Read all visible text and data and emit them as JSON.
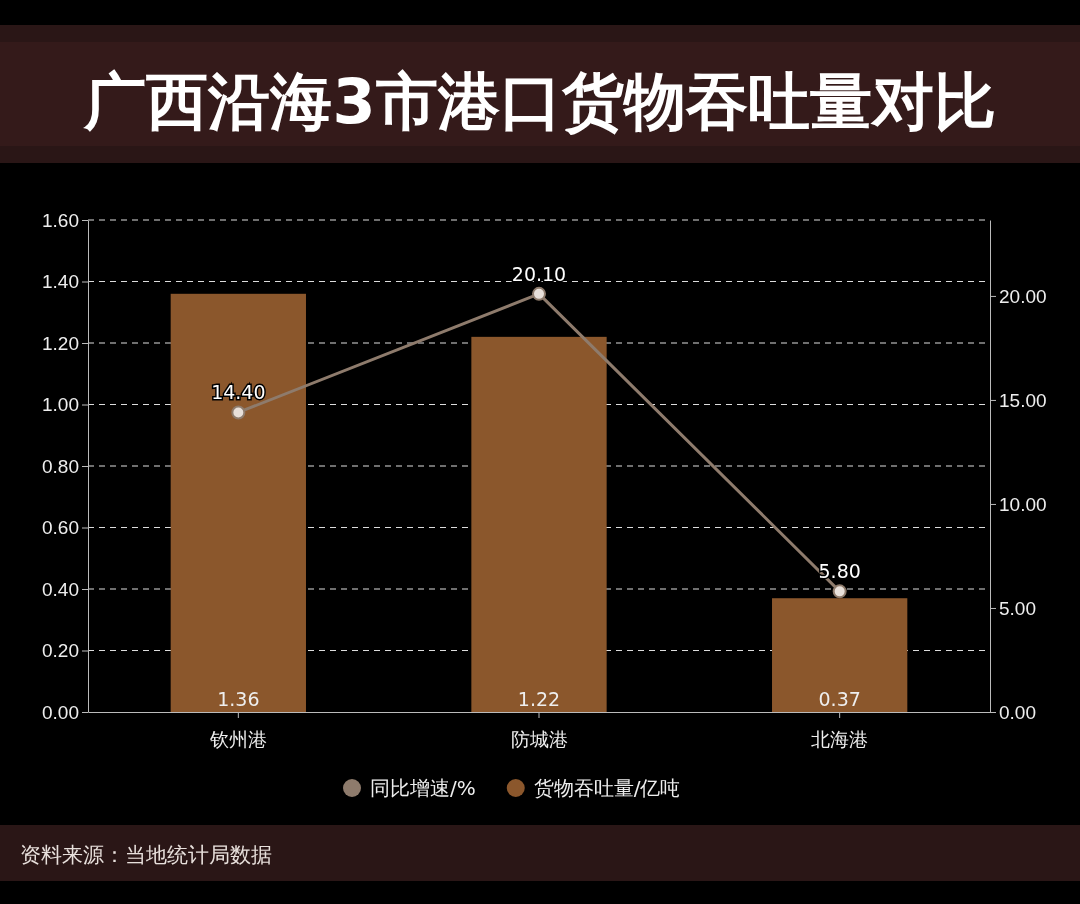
{
  "chart_data": {
    "type": "bar",
    "title": "广西沿海3市港口货物吞吐量对比",
    "categories": [
      "钦州港",
      "防城港",
      "北海港"
    ],
    "series": [
      {
        "name": "同比增速/%",
        "type": "line",
        "axis": "y2",
        "color": "#8e7b6c",
        "values": [
          14.4,
          20.1,
          5.8
        ],
        "value_labels": [
          "14.40",
          "20.10",
          "5.80"
        ]
      },
      {
        "name": "货物吞吐量/亿吨",
        "color": "#8b572c",
        "values": [
          1.36,
          1.22,
          0.37
        ]
      }
    ],
    "ylim": [
      0,
      1.6
    ],
    "yticks": [
      {
        "value": 0,
        "label": "0.00"
      },
      {
        "value": 0.2,
        "label": "0.20"
      },
      {
        "value": 0.4,
        "label": "0.40"
      },
      {
        "value": 0.6,
        "label": "0.60"
      },
      {
        "value": 0.8,
        "label": "0.80"
      },
      {
        "value": 1,
        "label": "1.00"
      },
      {
        "value": 1.2,
        "label": "1.20"
      },
      {
        "value": 1.4,
        "label": "1.40"
      },
      {
        "value": 1.6,
        "label": "1.60"
      }
    ],
    "y2lim": [
      0,
      23.65
    ],
    "y2ticks": [
      {
        "value": 0,
        "label": "0.00"
      },
      {
        "value": 5,
        "label": "5.00"
      },
      {
        "value": 10,
        "label": "10.00"
      },
      {
        "value": 15,
        "label": "15.00"
      },
      {
        "value": 20,
        "label": "20.00"
      }
    ],
    "grid": "y",
    "legend": "bottom",
    "marker": "circle",
    "data_labels": true,
    "annotations": [
      "资料来源：当地统计局数据"
    ]
  }
}
